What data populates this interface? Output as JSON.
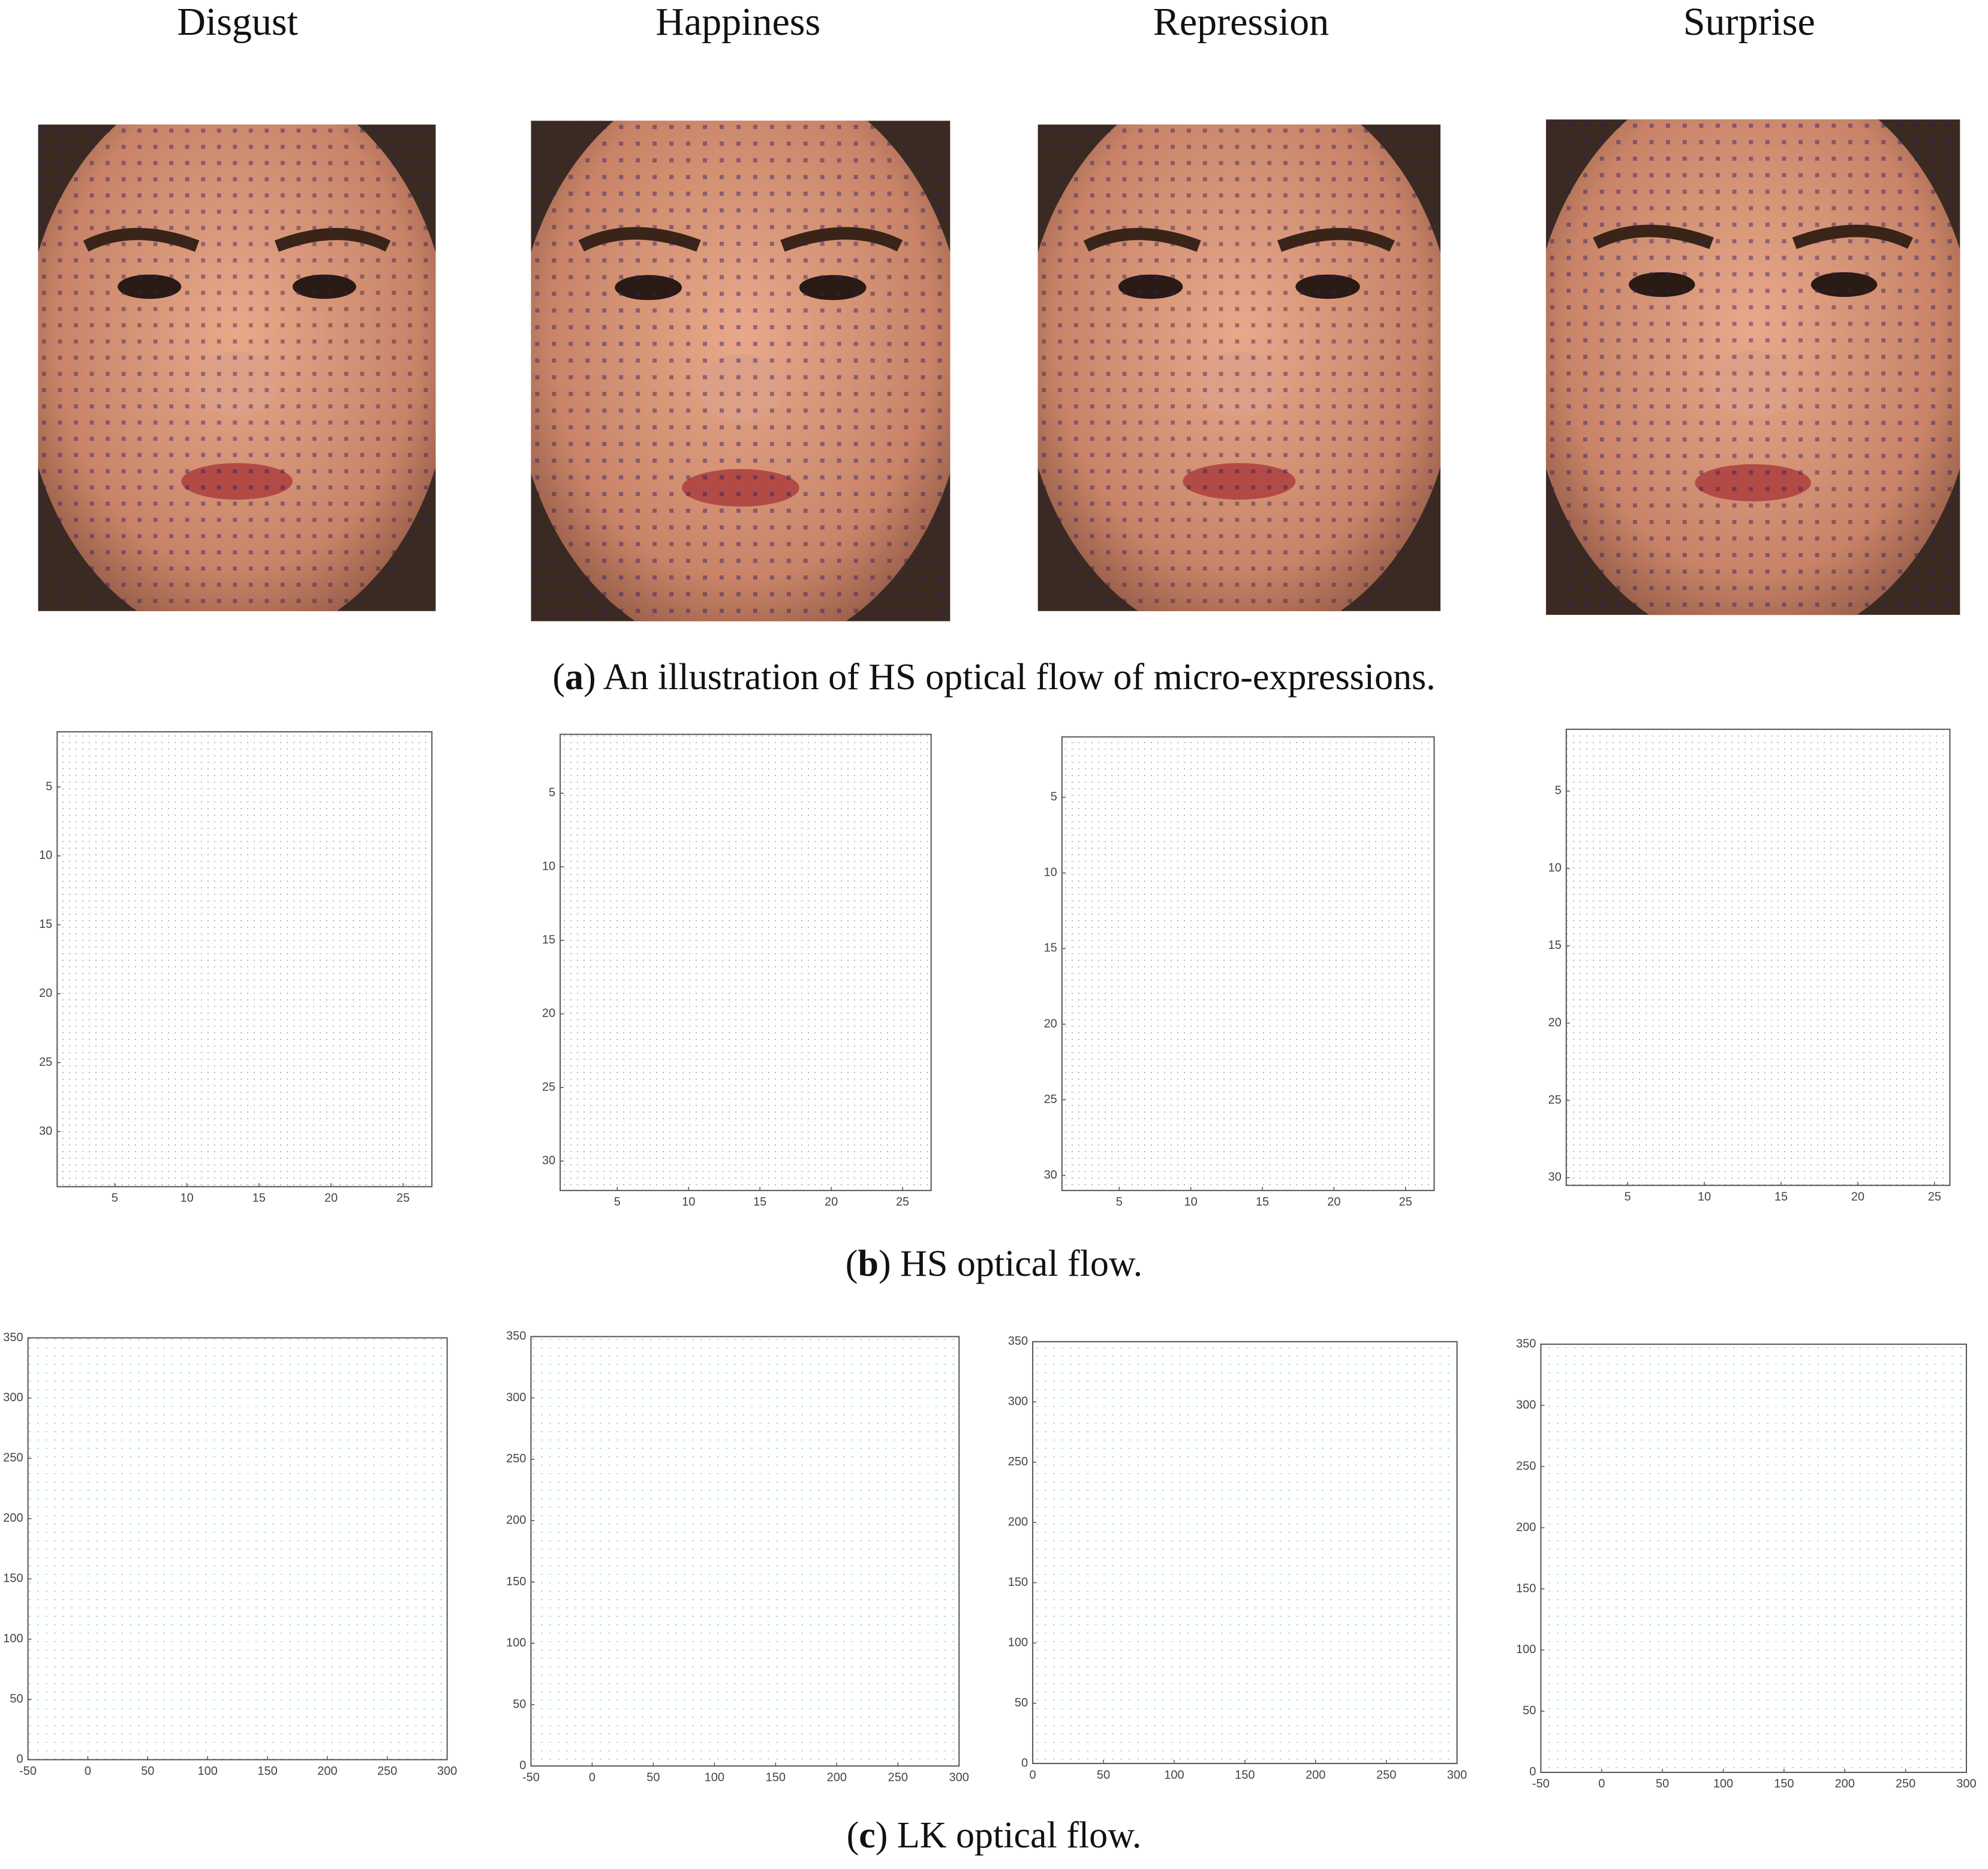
{
  "columns": [
    "Disgust",
    "Happiness",
    "Repression",
    "Surprise"
  ],
  "captions": [
    [
      "(",
      "a",
      ") An illustration of HS optical flow of micro-expressions."
    ],
    [
      "(",
      "b",
      ") HS optical flow."
    ],
    [
      "(",
      "c",
      ") LK optical flow."
    ]
  ],
  "hs_plots": [
    {
      "xlim": [
        1,
        27
      ],
      "ylim": [
        1,
        34
      ],
      "xticks": [
        5,
        10,
        15,
        20,
        25
      ],
      "yticks": [
        5,
        10,
        15,
        20,
        25,
        30
      ]
    },
    {
      "xlim": [
        1,
        27
      ],
      "ylim": [
        1,
        32
      ],
      "xticks": [
        5,
        10,
        15,
        20,
        25
      ],
      "yticks": [
        5,
        10,
        15,
        20,
        25,
        30
      ]
    },
    {
      "xlim": [
        1,
        27
      ],
      "ylim": [
        1,
        31
      ],
      "xticks": [
        5,
        10,
        15,
        20,
        25
      ],
      "yticks": [
        5,
        10,
        15,
        20,
        25,
        30
      ]
    },
    {
      "xlim": [
        1,
        26
      ],
      "ylim": [
        1,
        30.5
      ],
      "xticks": [
        5,
        10,
        15,
        20,
        25
      ],
      "yticks": [
        5,
        10,
        15,
        20,
        25,
        30
      ]
    }
  ],
  "lk_plots": [
    {
      "xlim": [
        -50,
        300
      ],
      "ylim": [
        0,
        350
      ],
      "xticks": [
        -50,
        0,
        50,
        100,
        150,
        200,
        250,
        300
      ],
      "yticks": [
        0,
        50,
        100,
        150,
        200,
        250,
        300,
        350
      ]
    },
    {
      "xlim": [
        -50,
        300
      ],
      "ylim": [
        0,
        350
      ],
      "xticks": [
        -50,
        0,
        50,
        100,
        150,
        200,
        250,
        300
      ],
      "yticks": [
        0,
        50,
        100,
        150,
        200,
        250,
        300,
        350
      ]
    },
    {
      "xlim": [
        0,
        300
      ],
      "ylim": [
        0,
        350
      ],
      "xticks": [
        0,
        50,
        100,
        150,
        200,
        250,
        300
      ],
      "yticks": [
        0,
        50,
        100,
        150,
        200,
        250,
        300,
        350
      ]
    },
    {
      "xlim": [
        -50,
        300
      ],
      "ylim": [
        0,
        350
      ],
      "xticks": [
        -50,
        0,
        50,
        100,
        150,
        200,
        250,
        300
      ],
      "yticks": [
        0,
        50,
        100,
        150,
        200,
        250,
        300,
        350
      ]
    }
  ]
}
